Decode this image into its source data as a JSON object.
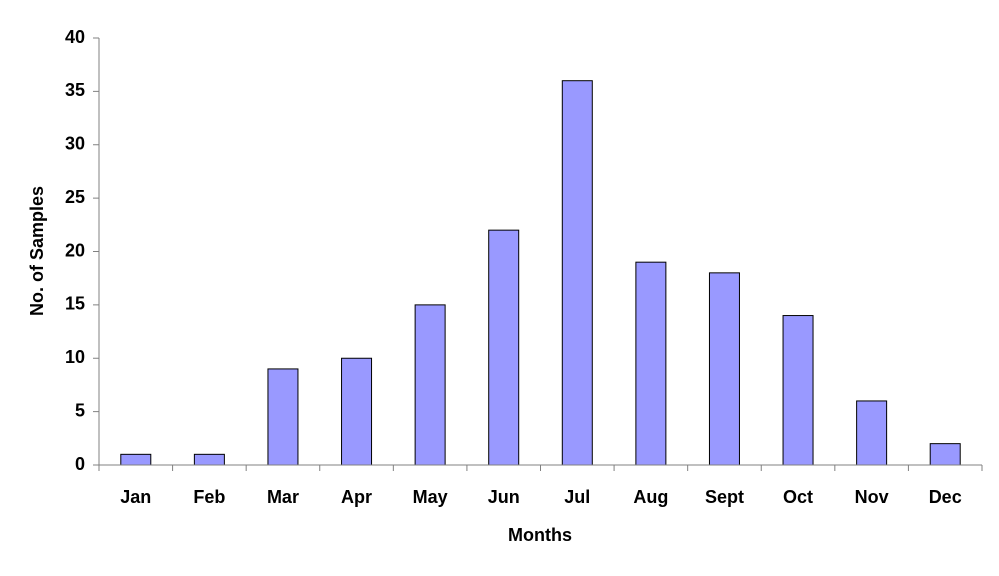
{
  "chart_data": {
    "type": "bar",
    "x_label": "Months",
    "y_label": "No. of Samples",
    "categories": [
      "Jan",
      "Feb",
      "Mar",
      "Apr",
      "May",
      "Jun",
      "Jul",
      "Aug",
      "Sept",
      "Oct",
      "Nov",
      "Dec"
    ],
    "values": [
      1,
      1,
      9,
      10,
      15,
      22,
      36,
      19,
      18,
      14,
      6,
      2
    ],
    "color": "#9999ff",
    "ylim": [
      0,
      40
    ],
    "yticks": [
      0,
      5,
      10,
      15,
      20,
      25,
      30,
      35,
      40
    ],
    "grid": false
  }
}
